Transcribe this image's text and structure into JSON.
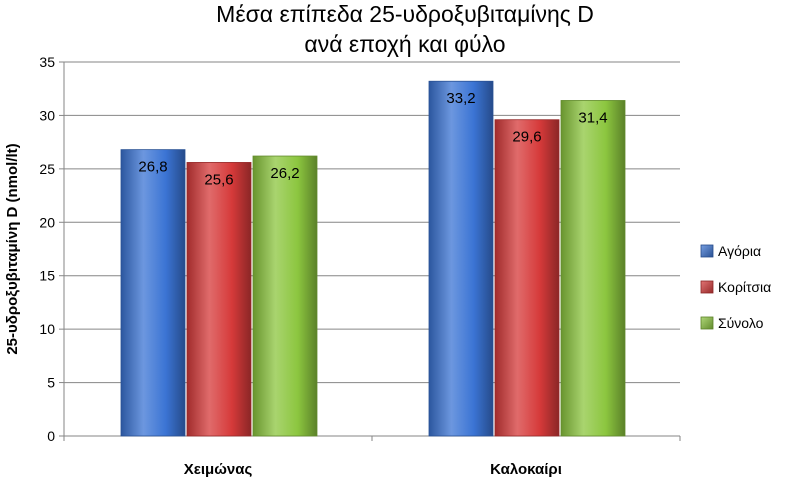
{
  "chart_data": {
    "type": "bar",
    "title_lines": [
      "Μέσα επίπεδα 25-υδροξυβιταμίνης D",
      "ανά εποχή και φύλο"
    ],
    "ylabel": "25-υδροξυβιταμίνη D (nmol/lt)",
    "xlabel": "",
    "ylim": [
      0,
      35
    ],
    "yticks": [
      0,
      5,
      10,
      15,
      20,
      25,
      30,
      35
    ],
    "grid": true,
    "legend_position": "right",
    "categories": [
      "Χειμώνας",
      "Καλοκαίρι"
    ],
    "series": [
      {
        "name": "Αγόρια",
        "values": [
          26.8,
          33.2
        ],
        "labels": [
          "26,8",
          "33,2"
        ],
        "color": "#3b74d4"
      },
      {
        "name": "Κορίτσια",
        "values": [
          25.6,
          29.6
        ],
        "labels": [
          "25,6",
          "29,6"
        ],
        "color": "#d63a3a"
      },
      {
        "name": "Σύνολο",
        "values": [
          26.2,
          31.4
        ],
        "labels": [
          "26,2",
          "31,4"
        ],
        "color": "#8cc63f"
      }
    ]
  }
}
